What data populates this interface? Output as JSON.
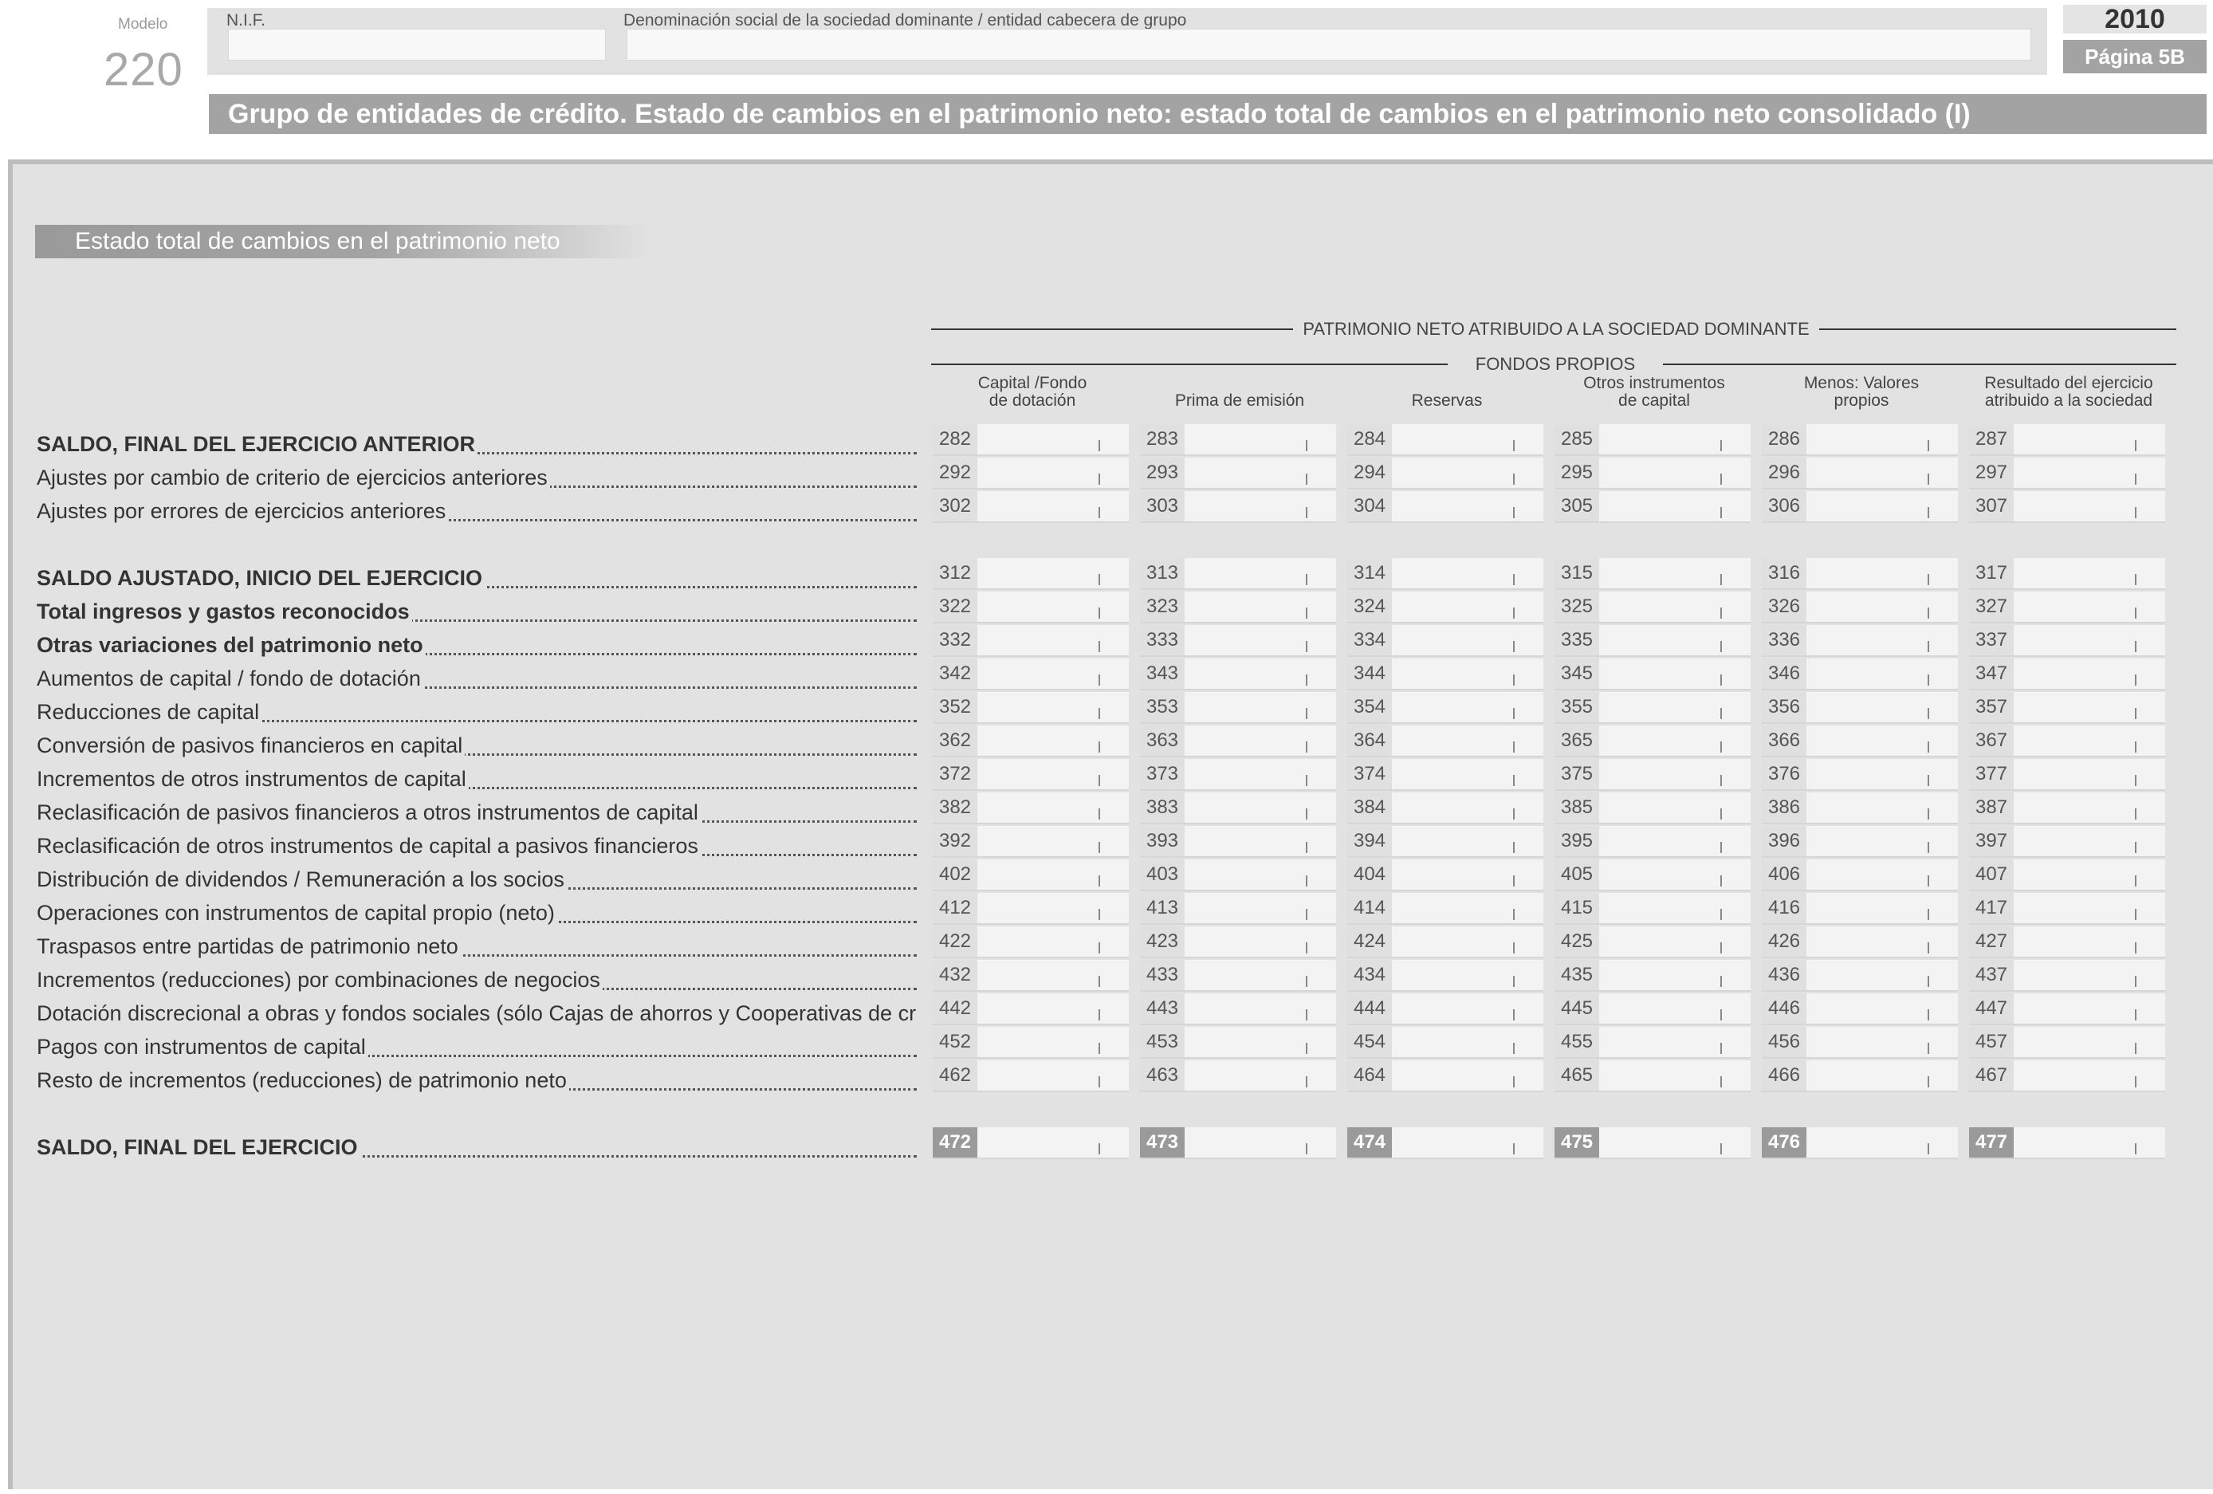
{
  "header": {
    "modelo_label": "Modelo",
    "modelo_number": "220",
    "nif_label": "N.I.F.",
    "nif_value": "",
    "denominacion_label": "Denominación social de la sociedad dominante / entidad cabecera de grupo",
    "denominacion_value": "",
    "year": "2010",
    "page": "Página 5B",
    "title": "Grupo de entidades de crédito. Estado de cambios en el patrimonio neto: estado total de cambios en el patrimonio neto consolidado (I)"
  },
  "section": {
    "title": "Estado total de cambios en el patrimonio neto",
    "group_header": "PATRIMONIO NETO ATRIBUIDO A LA SOCIEDAD DOMINANTE",
    "subgroup_header": "FONDOS PROPIOS",
    "columns": [
      {
        "line1": "Capital /Fondo",
        "line2": "de dotación"
      },
      {
        "line1": "",
        "line2": "Prima de emisión"
      },
      {
        "line1": "",
        "line2": "Reservas"
      },
      {
        "line1": "Otros instrumentos",
        "line2": "de capital"
      },
      {
        "line1": "Menos: Valores",
        "line2": "propios"
      },
      {
        "line1": "Resultado del ejercicio",
        "line2": "atribuido a la sociedad"
      }
    ]
  },
  "rows": [
    {
      "label": "SALDO, FINAL DEL EJERCICIO ANTERIOR",
      "bold": true,
      "codes": [
        "282",
        "283",
        "284",
        "285",
        "286",
        "287"
      ]
    },
    {
      "label": "Ajustes por cambio de criterio de ejercicios anteriores",
      "bold": false,
      "codes": [
        "292",
        "293",
        "294",
        "295",
        "296",
        "297"
      ]
    },
    {
      "label": "Ajustes por errores de ejercicios anteriores",
      "bold": false,
      "codes": [
        "302",
        "303",
        "304",
        "305",
        "306",
        "307"
      ]
    },
    {
      "label": "SALDO AJUSTADO, INICIO DEL EJERCICIO",
      "bold": true,
      "codes": [
        "312",
        "313",
        "314",
        "315",
        "316",
        "317"
      ]
    },
    {
      "label": "Total ingresos y gastos reconocidos",
      "bold": true,
      "codes": [
        "322",
        "323",
        "324",
        "325",
        "326",
        "327"
      ]
    },
    {
      "label": "Otras variaciones del patrimonio neto",
      "bold": true,
      "codes": [
        "332",
        "333",
        "334",
        "335",
        "336",
        "337"
      ]
    },
    {
      "label": "Aumentos de capital / fondo de dotación",
      "bold": false,
      "codes": [
        "342",
        "343",
        "344",
        "345",
        "346",
        "347"
      ]
    },
    {
      "label": "Reducciones de capital",
      "bold": false,
      "codes": [
        "352",
        "353",
        "354",
        "355",
        "356",
        "357"
      ]
    },
    {
      "label": "Conversión de pasivos financieros en capital",
      "bold": false,
      "codes": [
        "362",
        "363",
        "364",
        "365",
        "366",
        "367"
      ]
    },
    {
      "label": "Incrementos de otros instrumentos de capital",
      "bold": false,
      "codes": [
        "372",
        "373",
        "374",
        "375",
        "376",
        "377"
      ]
    },
    {
      "label": "Reclasificación de pasivos financieros a otros instrumentos de capital",
      "bold": false,
      "codes": [
        "382",
        "383",
        "384",
        "385",
        "386",
        "387"
      ]
    },
    {
      "label": "Reclasificación de otros instrumentos de capital a pasivos financieros",
      "bold": false,
      "codes": [
        "392",
        "393",
        "394",
        "395",
        "396",
        "397"
      ]
    },
    {
      "label": "Distribución de dividendos / Remuneración a los socios",
      "bold": false,
      "codes": [
        "402",
        "403",
        "404",
        "405",
        "406",
        "407"
      ]
    },
    {
      "label": "Operaciones con instrumentos de capital propio (neto)",
      "bold": false,
      "codes": [
        "412",
        "413",
        "414",
        "415",
        "416",
        "417"
      ]
    },
    {
      "label": "Traspasos entre partidas de patrimonio neto",
      "bold": false,
      "codes": [
        "422",
        "423",
        "424",
        "425",
        "426",
        "427"
      ]
    },
    {
      "label": "Incrementos (reducciones) por combinaciones de negocios",
      "bold": false,
      "codes": [
        "432",
        "433",
        "434",
        "435",
        "436",
        "437"
      ]
    },
    {
      "label": "Dotación discrecional a obras y fondos sociales (sólo Cajas de ahorros y Cooperativas de crédito)",
      "bold": false,
      "codes": [
        "442",
        "443",
        "444",
        "445",
        "446",
        "447"
      ]
    },
    {
      "label": "Pagos con instrumentos de capital",
      "bold": false,
      "codes": [
        "452",
        "453",
        "454",
        "455",
        "456",
        "457"
      ]
    },
    {
      "label": "Resto de incrementos (reducciones) de patrimonio neto",
      "bold": false,
      "codes": [
        "462",
        "463",
        "464",
        "465",
        "466",
        "467"
      ]
    },
    {
      "label": "SALDO, FINAL DEL EJERCICIO",
      "bold": true,
      "codes": [
        "472",
        "473",
        "474",
        "475",
        "476",
        "477"
      ]
    }
  ]
}
